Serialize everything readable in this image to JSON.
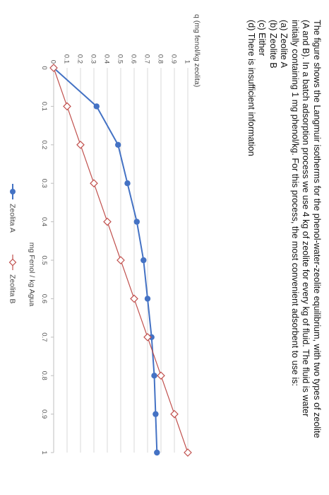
{
  "question": {
    "intro": "The figure shows the Langmuir isotherms for the phenol-water-zeolite equilibrium, with two types of zeolite (A and B). In a batch adsorption process we use 4 kg of zeolite for every kg of fluid. The fluid is water initially containing 1 mg phenol/kg. For this process, the most convenient adsorbent to use is:",
    "options": [
      "(a) Zeolite A",
      "(b) Zeolite B",
      "(c) Either",
      "(d) There is insufficient information"
    ]
  },
  "chart_data": {
    "type": "line",
    "title": "",
    "xlabel": "mg Fenol / kg Agua",
    "ylabel": "q (mg fenol/kg zeolita)",
    "xlim": [
      0,
      1
    ],
    "ylim": [
      0,
      1
    ],
    "x_ticks": [
      "0",
      "0.1",
      "0.2",
      "0.3",
      "0.4",
      "0.5",
      "0.6",
      "0.7",
      "0.8",
      "0.9",
      "1"
    ],
    "y_ticks": [
      "0",
      "0.1",
      "0.2",
      "0.3",
      "0.4",
      "0.5",
      "0.6",
      "0.7",
      "0.8",
      "0.9",
      "1"
    ],
    "grid": true,
    "legend_position": "bottom",
    "x": [
      0,
      0.1,
      0.2,
      0.3,
      0.4,
      0.5,
      0.6,
      0.7,
      0.8,
      0.9,
      1.0
    ],
    "series": [
      {
        "name": "Zeolita A",
        "color": "#4472c4",
        "marker": "circle",
        "x": [
          0,
          0.1,
          0.2,
          0.3,
          0.4,
          0.5,
          0.6,
          0.7,
          0.8,
          0.9,
          1.0
        ],
        "values": [
          0,
          0.32,
          0.48,
          0.55,
          0.62,
          0.67,
          0.7,
          0.73,
          0.75,
          0.76,
          0.77
        ]
      },
      {
        "name": "Zeolita B",
        "color": "#c0504d",
        "marker": "diamond-open",
        "x": [
          0,
          0.1,
          0.2,
          0.3,
          0.4,
          0.5,
          0.6,
          0.7,
          0.8,
          0.9,
          1.0
        ],
        "values": [
          0,
          0.1,
          0.2,
          0.3,
          0.4,
          0.5,
          0.6,
          0.7,
          0.8,
          0.9,
          1.0
        ]
      }
    ]
  }
}
